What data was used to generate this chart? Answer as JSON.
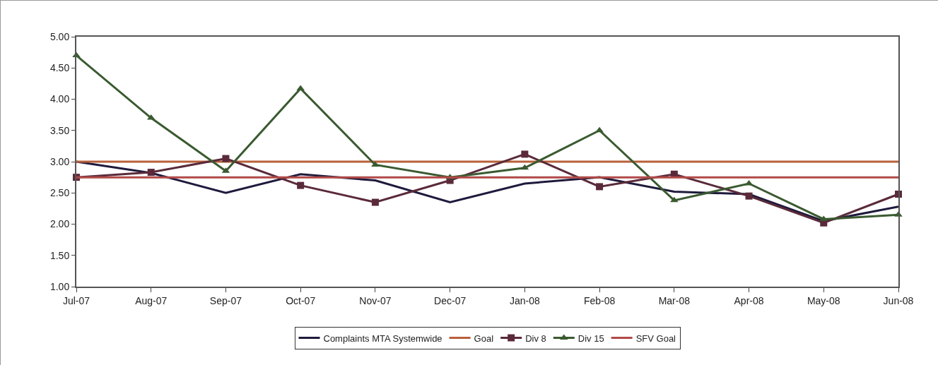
{
  "chart_data": {
    "type": "line",
    "categories": [
      "Jul-07",
      "Aug-07",
      "Sep-07",
      "Oct-07",
      "Nov-07",
      "Dec-07",
      "Jan-08",
      "Feb-08",
      "Mar-08",
      "Apr-08",
      "May-08",
      "Jun-08"
    ],
    "series": [
      {
        "name": "Complaints MTA Systemwide",
        "color": "#1e1a3c",
        "marker": "none",
        "values": [
          3.0,
          2.82,
          2.5,
          2.8,
          2.7,
          2.35,
          2.65,
          2.75,
          2.52,
          2.48,
          2.05,
          2.28
        ]
      },
      {
        "name": "Goal",
        "color": "#b8603a",
        "marker": "none",
        "values": [
          3.0,
          3.0,
          3.0,
          3.0,
          3.0,
          3.0,
          3.0,
          3.0,
          3.0,
          3.0,
          3.0,
          3.0
        ]
      },
      {
        "name": "Div 8",
        "color": "#5a2a3a",
        "marker": "square",
        "values": [
          2.75,
          2.83,
          3.05,
          2.62,
          2.35,
          2.7,
          3.12,
          2.6,
          2.8,
          2.45,
          2.02,
          2.48
        ]
      },
      {
        "name": "Div 15",
        "color": "#3a5a30",
        "marker": "triangle",
        "values": [
          4.7,
          3.7,
          2.85,
          4.17,
          2.95,
          2.75,
          2.9,
          3.5,
          2.38,
          2.65,
          2.08,
          2.15
        ]
      },
      {
        "name": "SFV Goal",
        "color": "#b04a48",
        "marker": "none",
        "values": [
          2.75,
          2.75,
          2.75,
          2.75,
          2.75,
          2.75,
          2.75,
          2.75,
          2.75,
          2.75,
          2.75,
          2.75
        ]
      }
    ],
    "ylim": [
      1,
      5
    ],
    "yticks": [
      {
        "value": 1,
        "label": "1.00"
      },
      {
        "value": 1.5,
        "label": "1.50"
      },
      {
        "value": 2,
        "label": "2.00"
      },
      {
        "value": 2.5,
        "label": "2.50"
      },
      {
        "value": 3,
        "label": "3.00"
      },
      {
        "value": 3.5,
        "label": "3.50"
      },
      {
        "value": 4,
        "label": "4.00"
      },
      {
        "value": 4.5,
        "label": "4.50"
      },
      {
        "value": 5,
        "label": "5.00"
      }
    ],
    "grid": false,
    "legend": "bottom"
  }
}
